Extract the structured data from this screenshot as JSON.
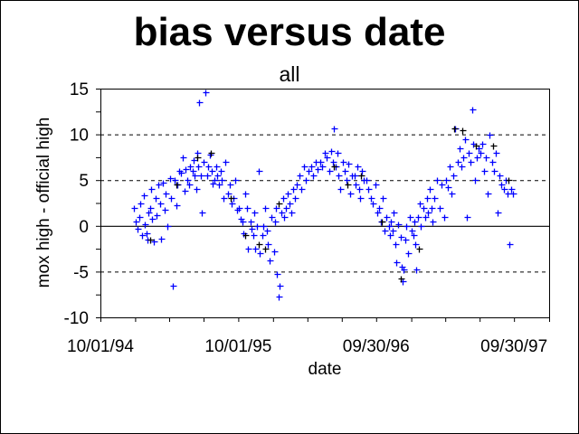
{
  "chart_data": {
    "type": "scatter",
    "title": "bias versus date",
    "subtitle": "all",
    "xlabel": "date",
    "ylabel": "mox high - official high",
    "xlim": [
      "1994-10-01",
      "1998-01-01"
    ],
    "ylim": [
      -10,
      15
    ],
    "y_ticks": [
      15,
      10,
      5,
      0,
      -5,
      -10
    ],
    "y_tick_labels": [
      "15",
      "10",
      "5",
      "0",
      "-5",
      "-10"
    ],
    "y_minor_step": 2.5,
    "x_tick_dates": [
      "1994-10-01",
      "1995-01-01",
      "1995-04-01",
      "1995-07-01",
      "1995-10-01",
      "1996-01-01",
      "1996-04-01",
      "1996-07-01",
      "1996-09-30",
      "1997-01-01",
      "1997-04-01",
      "1997-07-01",
      "1997-09-30",
      "1998-01-01"
    ],
    "x_tick_labels": [
      {
        "date": "1994-10-01",
        "label": "10/01/94"
      },
      {
        "date": "1995-10-01",
        "label": "10/01/95"
      },
      {
        "date": "1996-09-30",
        "label": "09/30/96"
      },
      {
        "date": "1997-09-30",
        "label": "09/30/97"
      }
    ],
    "grid": {
      "dashed_at": [
        10,
        5,
        -5
      ],
      "solid_at": [
        0
      ]
    },
    "marker": "plus",
    "series": [
      {
        "color": "#0000ff",
        "points": [
          [
            "1994-12-28",
            2.0
          ],
          [
            "1995-01-03",
            0.5
          ],
          [
            "1995-01-07",
            -0.3
          ],
          [
            "1995-01-11",
            1.0
          ],
          [
            "1995-01-15",
            2.5
          ],
          [
            "1995-01-19",
            -1.0
          ],
          [
            "1995-01-23",
            3.3
          ],
          [
            "1995-01-27",
            0.2
          ],
          [
            "1995-01-30",
            -0.8
          ],
          [
            "1995-02-03",
            -1.5
          ],
          [
            "1995-02-06",
            1.5
          ],
          [
            "1995-02-09",
            2.0
          ],
          [
            "1995-02-12",
            4.0
          ],
          [
            "1995-02-15",
            0.8
          ],
          [
            "1995-02-19",
            -1.7
          ],
          [
            "1995-02-23",
            3.0
          ],
          [
            "1995-02-27",
            1.2
          ],
          [
            "1995-03-03",
            4.5
          ],
          [
            "1995-03-07",
            2.5
          ],
          [
            "1995-03-11",
            -1.4
          ],
          [
            "1995-03-15",
            4.7
          ],
          [
            "1995-03-19",
            1.8
          ],
          [
            "1995-03-23",
            3.5
          ],
          [
            "1995-03-27",
            0.0
          ],
          [
            "1995-04-03",
            5.2
          ],
          [
            "1995-04-07",
            3.0
          ],
          [
            "1995-04-11",
            -6.5
          ],
          [
            "1995-04-15",
            5.0
          ],
          [
            "1995-04-19",
            2.3
          ],
          [
            "1995-04-23",
            4.5
          ],
          [
            "1995-04-27",
            6.0
          ],
          [
            "1995-05-03",
            5.8
          ],
          [
            "1995-05-07",
            7.5
          ],
          [
            "1995-05-11",
            3.8
          ],
          [
            "1995-05-15",
            6.2
          ],
          [
            "1995-05-19",
            5.0
          ],
          [
            "1995-05-23",
            4.5
          ],
          [
            "1995-05-27",
            6.5
          ],
          [
            "1995-06-02",
            6.0
          ],
          [
            "1995-06-05",
            7.2
          ],
          [
            "1995-06-08",
            5.5
          ],
          [
            "1995-06-11",
            4.0
          ],
          [
            "1995-06-14",
            8.0
          ],
          [
            "1995-06-17",
            6.5
          ],
          [
            "1995-06-20",
            13.5
          ],
          [
            "1995-06-23",
            5.5
          ],
          [
            "1995-06-27",
            1.5
          ],
          [
            "1995-07-02",
            7.0
          ],
          [
            "1995-07-06",
            14.6
          ],
          [
            "1995-07-10",
            5.5
          ],
          [
            "1995-07-14",
            6.5
          ],
          [
            "1995-07-18",
            7.8
          ],
          [
            "1995-07-22",
            6.0
          ],
          [
            "1995-07-26",
            4.6
          ],
          [
            "1995-07-30",
            5.0
          ],
          [
            "1995-08-03",
            6.5
          ],
          [
            "1995-08-07",
            5.5
          ],
          [
            "1995-08-11",
            4.5
          ],
          [
            "1995-08-15",
            6.0
          ],
          [
            "1995-08-19",
            5.0
          ],
          [
            "1995-08-23",
            3.0
          ],
          [
            "1995-08-27",
            7.0
          ],
          [
            "1995-09-03",
            3.5
          ],
          [
            "1995-09-08",
            4.5
          ],
          [
            "1995-09-13",
            2.5
          ],
          [
            "1995-09-18",
            3.0
          ],
          [
            "1995-09-23",
            5.0
          ],
          [
            "1995-09-28",
            1.8
          ],
          [
            "1995-10-03",
            2.0
          ],
          [
            "1995-10-07",
            0.8
          ],
          [
            "1995-10-11",
            0.5
          ],
          [
            "1995-10-15",
            -0.8
          ],
          [
            "1995-10-19",
            3.5
          ],
          [
            "1995-10-23",
            2.0
          ],
          [
            "1995-10-27",
            -2.5
          ],
          [
            "1995-11-03",
            0.5
          ],
          [
            "1995-11-06",
            -0.3
          ],
          [
            "1995-11-09",
            -1.0
          ],
          [
            "1995-11-12",
            1.5
          ],
          [
            "1995-11-15",
            -2.5
          ],
          [
            "1995-11-19",
            0.0
          ],
          [
            "1995-11-23",
            6.0
          ],
          [
            "1995-11-27",
            -3.0
          ],
          [
            "1995-12-03",
            -1.0
          ],
          [
            "1995-12-07",
            0.0
          ],
          [
            "1995-12-11",
            2.0
          ],
          [
            "1995-12-15",
            -0.5
          ],
          [
            "1995-12-19",
            -2.0
          ],
          [
            "1995-12-23",
            -3.8
          ],
          [
            "1995-12-27",
            1.0
          ],
          [
            "1996-01-03",
            -2.8
          ],
          [
            "1996-01-06",
            0.5
          ],
          [
            "1996-01-09",
            2.0
          ],
          [
            "1996-01-12",
            -5.3
          ],
          [
            "1996-01-15",
            -7.7
          ],
          [
            "1996-01-19",
            -6.5
          ],
          [
            "1996-01-23",
            1.5
          ],
          [
            "1996-01-27",
            3.0
          ],
          [
            "1996-01-30",
            1.0
          ],
          [
            "1996-02-03",
            2.0
          ],
          [
            "1996-02-08",
            3.5
          ],
          [
            "1996-02-13",
            2.5
          ],
          [
            "1996-02-18",
            1.5
          ],
          [
            "1996-02-23",
            4.0
          ],
          [
            "1996-02-27",
            3.0
          ],
          [
            "1996-03-04",
            4.5
          ],
          [
            "1996-03-10",
            5.5
          ],
          [
            "1996-03-16",
            4.0
          ],
          [
            "1996-03-22",
            6.5
          ],
          [
            "1996-03-28",
            5.0
          ],
          [
            "1996-04-04",
            6.0
          ],
          [
            "1996-04-10",
            6.5
          ],
          [
            "1996-04-16",
            5.5
          ],
          [
            "1996-04-22",
            7.0
          ],
          [
            "1996-04-28",
            6.2
          ],
          [
            "1996-05-04",
            7.0
          ],
          [
            "1996-05-10",
            6.5
          ],
          [
            "1996-05-16",
            8.0
          ],
          [
            "1996-05-22",
            7.5
          ],
          [
            "1996-05-28",
            6.0
          ],
          [
            "1996-06-03",
            8.2
          ],
          [
            "1996-06-07",
            7.0
          ],
          [
            "1996-06-11",
            10.7
          ],
          [
            "1996-06-15",
            6.5
          ],
          [
            "1996-06-19",
            8.0
          ],
          [
            "1996-06-23",
            5.5
          ],
          [
            "1996-06-27",
            4.0
          ],
          [
            "1996-07-03",
            7.0
          ],
          [
            "1996-07-08",
            6.0
          ],
          [
            "1996-07-13",
            5.0
          ],
          [
            "1996-07-18",
            6.8
          ],
          [
            "1996-07-23",
            3.5
          ],
          [
            "1996-07-28",
            5.5
          ],
          [
            "1996-08-03",
            5.5
          ],
          [
            "1996-08-07",
            4.5
          ],
          [
            "1996-08-11",
            6.5
          ],
          [
            "1996-08-15",
            4.0
          ],
          [
            "1996-08-19",
            3.0
          ],
          [
            "1996-08-23",
            6.0
          ],
          [
            "1996-08-27",
            5.0
          ],
          [
            "1996-09-04",
            5.0
          ],
          [
            "1996-09-10",
            4.0
          ],
          [
            "1996-09-16",
            3.0
          ],
          [
            "1996-09-22",
            2.5
          ],
          [
            "1996-09-28",
            4.5
          ],
          [
            "1996-10-03",
            1.5
          ],
          [
            "1996-10-08",
            2.0
          ],
          [
            "1996-10-13",
            0.5
          ],
          [
            "1996-10-18",
            3.0
          ],
          [
            "1996-10-23",
            -0.5
          ],
          [
            "1996-10-28",
            1.0
          ],
          [
            "1996-11-03",
            0.0
          ],
          [
            "1996-11-06",
            -1.0
          ],
          [
            "1996-11-09",
            0.5
          ],
          [
            "1996-11-12",
            -0.5
          ],
          [
            "1996-11-15",
            1.5
          ],
          [
            "1996-11-19",
            -2.0
          ],
          [
            "1996-11-23",
            -4.0
          ],
          [
            "1996-11-27",
            0.2
          ],
          [
            "1996-12-03",
            -1.2
          ],
          [
            "1996-12-06",
            -4.5
          ],
          [
            "1996-12-09",
            -6.0
          ],
          [
            "1996-12-12",
            -4.8
          ],
          [
            "1996-12-15",
            -1.5
          ],
          [
            "1996-12-19",
            0.0
          ],
          [
            "1996-12-23",
            -3.0
          ],
          [
            "1996-12-27",
            1.0
          ],
          [
            "1997-01-03",
            -0.5
          ],
          [
            "1997-01-06",
            -1.0
          ],
          [
            "1997-01-09",
            0.5
          ],
          [
            "1997-01-12",
            -2.0
          ],
          [
            "1997-01-15",
            -4.8
          ],
          [
            "1997-01-19",
            1.0
          ],
          [
            "1997-01-23",
            2.5
          ],
          [
            "1997-01-27",
            0.0
          ],
          [
            "1997-02-03",
            2.0
          ],
          [
            "1997-02-07",
            1.0
          ],
          [
            "1997-02-11",
            3.0
          ],
          [
            "1997-02-15",
            1.5
          ],
          [
            "1997-02-19",
            4.0
          ],
          [
            "1997-02-23",
            2.0
          ],
          [
            "1997-02-27",
            0.5
          ],
          [
            "1997-03-04",
            3.0
          ],
          [
            "1997-03-10",
            5.0
          ],
          [
            "1997-03-16",
            2.0
          ],
          [
            "1997-03-22",
            4.5
          ],
          [
            "1997-03-28",
            1.0
          ],
          [
            "1997-04-03",
            5.0
          ],
          [
            "1997-04-08",
            4.2
          ],
          [
            "1997-04-13",
            6.5
          ],
          [
            "1997-04-18",
            3.5
          ],
          [
            "1997-04-23",
            5.5
          ],
          [
            "1997-04-28",
            10.7
          ],
          [
            "1997-05-03",
            7.0
          ],
          [
            "1997-05-08",
            8.5
          ],
          [
            "1997-05-13",
            6.5
          ],
          [
            "1997-05-18",
            7.5
          ],
          [
            "1997-05-23",
            9.5
          ],
          [
            "1997-05-28",
            1.0
          ],
          [
            "1997-06-03",
            8.0
          ],
          [
            "1997-06-07",
            7.0
          ],
          [
            "1997-06-11",
            12.7
          ],
          [
            "1997-06-15",
            9.0
          ],
          [
            "1997-06-19",
            5.0
          ],
          [
            "1997-06-23",
            7.5
          ],
          [
            "1997-06-27",
            8.5
          ],
          [
            "1997-07-03",
            8.0
          ],
          [
            "1997-07-08",
            9.0
          ],
          [
            "1997-07-13",
            6.0
          ],
          [
            "1997-07-18",
            7.5
          ],
          [
            "1997-07-23",
            3.5
          ],
          [
            "1997-07-28",
            10.0
          ],
          [
            "1997-08-03",
            7.0
          ],
          [
            "1997-08-08",
            6.0
          ],
          [
            "1997-08-13",
            8.0
          ],
          [
            "1997-08-18",
            1.5
          ],
          [
            "1997-08-23",
            5.5
          ],
          [
            "1997-08-28",
            4.5
          ],
          [
            "1997-09-03",
            4.0
          ],
          [
            "1997-09-08",
            5.0
          ],
          [
            "1997-09-13",
            3.5
          ],
          [
            "1997-09-18",
            -2.0
          ],
          [
            "1997-09-23",
            4.0
          ],
          [
            "1997-09-28",
            3.5
          ]
        ]
      },
      {
        "color": "#000000",
        "points": [
          [
            "1995-02-10",
            -1.5
          ],
          [
            "1995-04-20",
            4.5
          ],
          [
            "1995-06-15",
            7.5
          ],
          [
            "1995-07-20",
            8.0
          ],
          [
            "1995-09-10",
            3.0
          ],
          [
            "1995-10-20",
            -1.0
          ],
          [
            "1995-11-25",
            -2.0
          ],
          [
            "1995-12-10",
            -2.5
          ],
          [
            "1996-01-15",
            2.5
          ],
          [
            "1996-06-10",
            6.5
          ],
          [
            "1996-07-15",
            4.5
          ],
          [
            "1996-08-20",
            5.5
          ],
          [
            "1996-10-15",
            0.5
          ],
          [
            "1996-12-05",
            -5.8
          ],
          [
            "1997-01-20",
            -2.5
          ],
          [
            "1997-04-25",
            10.7
          ],
          [
            "1997-05-15",
            10.5
          ],
          [
            "1997-06-20",
            8.8
          ],
          [
            "1997-08-05",
            8.8
          ],
          [
            "1997-09-15",
            5.0
          ]
        ]
      }
    ]
  }
}
